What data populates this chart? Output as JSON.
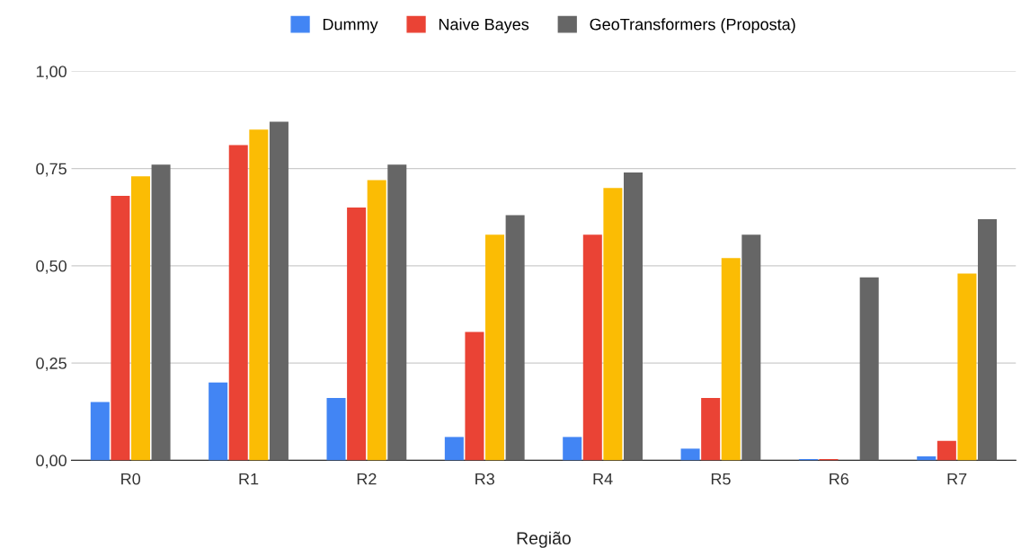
{
  "chart_data": {
    "type": "bar",
    "xlabel": "Região",
    "categories": [
      "R0",
      "R1",
      "R2",
      "R3",
      "R4",
      "R5",
      "R6",
      "R7"
    ],
    "series": [
      {
        "name": "Dummy",
        "color": "#4285f4",
        "values": [
          0.15,
          0.2,
          0.16,
          0.06,
          0.06,
          0.03,
          0.003,
          0.01
        ]
      },
      {
        "name": "Naive Bayes",
        "color": "#ea4335",
        "values": [
          0.68,
          0.81,
          0.65,
          0.33,
          0.58,
          0.16,
          0.003,
          0.05
        ]
      },
      {
        "color": "#fbbc04",
        "values": [
          0.73,
          0.85,
          0.72,
          0.58,
          0.7,
          0.52,
          null,
          0.48
        ]
      },
      {
        "name": "GeoTransformers (Proposta)",
        "color": "#666666",
        "values": [
          0.76,
          0.87,
          0.76,
          0.63,
          0.74,
          0.58,
          0.47,
          0.62
        ]
      }
    ],
    "ylim": [
      0,
      1
    ],
    "yticks": [
      {
        "value": 0,
        "label": "0,00"
      },
      {
        "value": 0.25,
        "label": "0,25"
      },
      {
        "value": 0.5,
        "label": "0,50"
      },
      {
        "value": 0.75,
        "label": "0,75"
      },
      {
        "value": 1,
        "label": "1,00"
      }
    ],
    "grid": "y",
    "legend": "top"
  }
}
